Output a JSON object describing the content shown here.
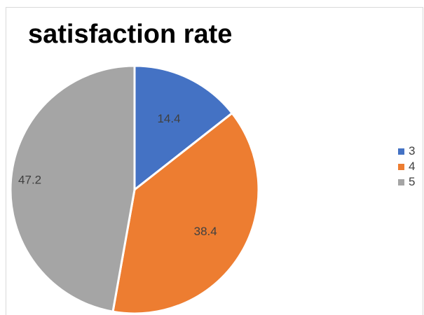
{
  "chart_data": {
    "type": "pie",
    "title": "satisfaction rate",
    "categories": [
      "3",
      "4",
      "5"
    ],
    "values": [
      14.4,
      38.4,
      47.2
    ],
    "data_labels": [
      "14.4",
      "38.4",
      "47.2"
    ],
    "colors": [
      "#4472c4",
      "#ed7d31",
      "#a5a5a5"
    ],
    "legend_position": "right",
    "start_angle": "top, clockwise"
  }
}
